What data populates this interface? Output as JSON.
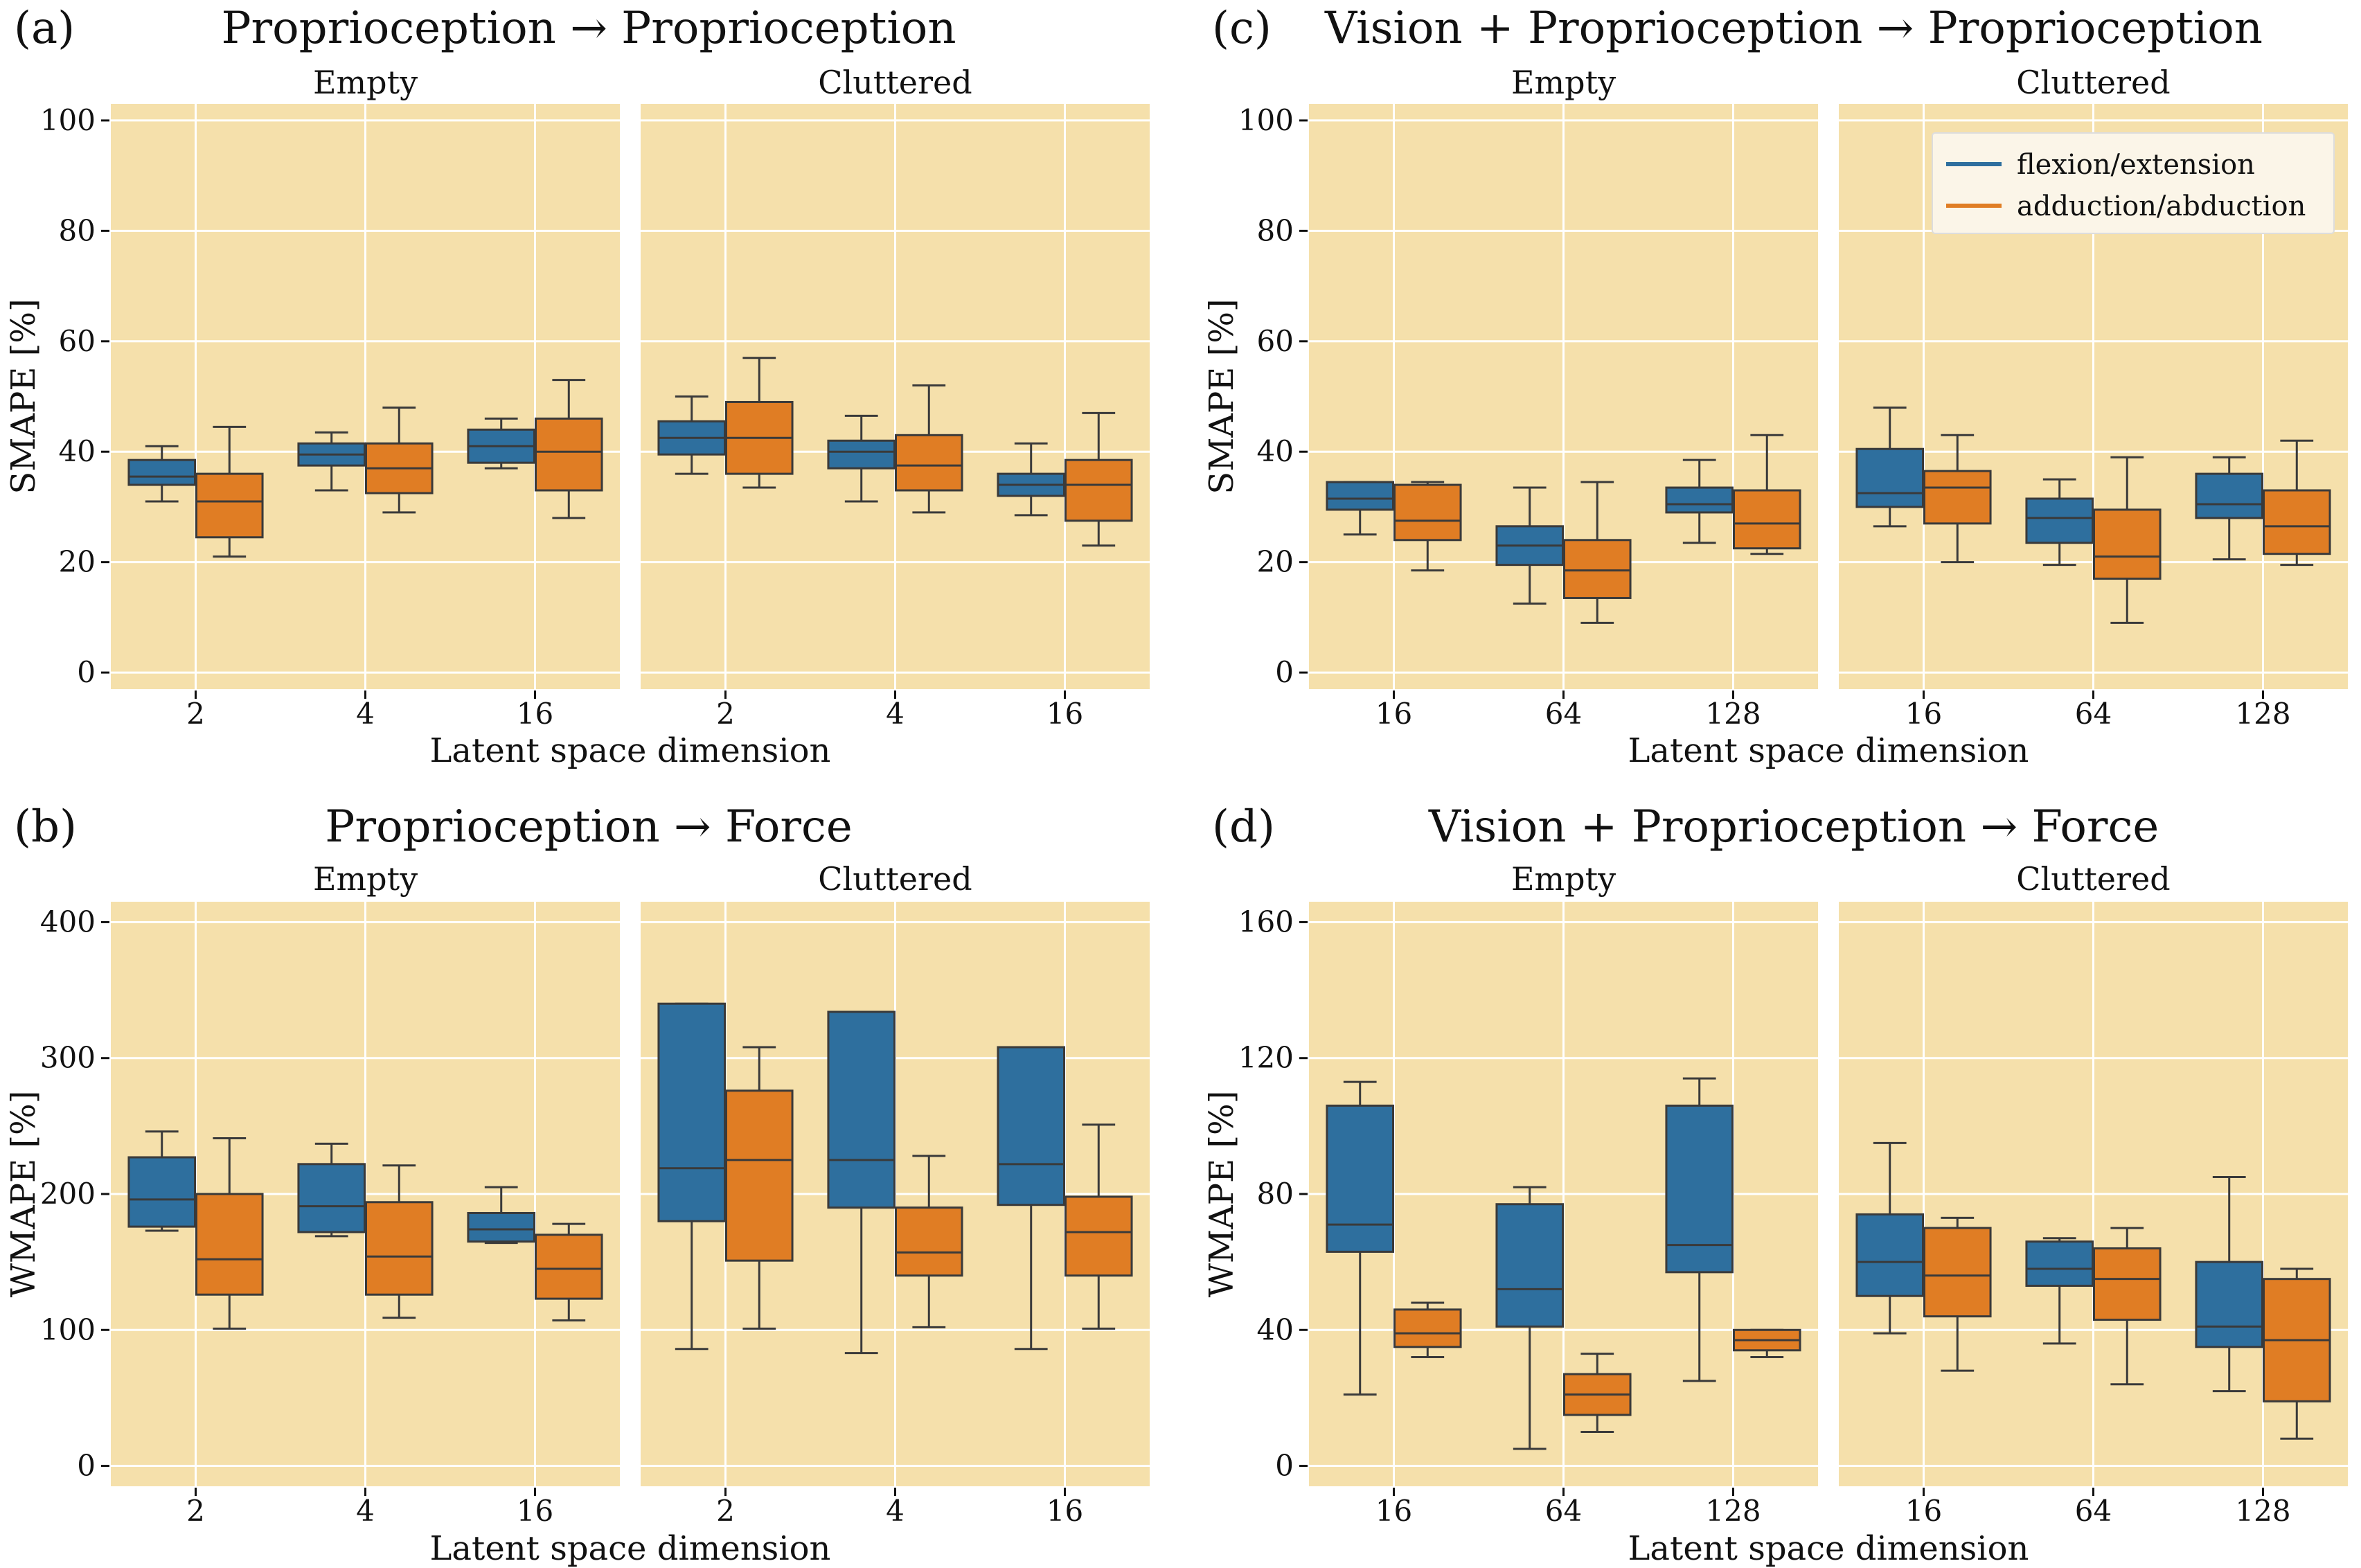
{
  "colors": {
    "panel_bg": "#f5e0ab",
    "grid": "#ffffff",
    "flexion": "#2e6f9e",
    "adduction": "#e07d24",
    "edge": "#3a3a3a"
  },
  "legend": {
    "flexion": "flexion/extension",
    "adduction": "adduction/abduction"
  },
  "chart_data": [
    {
      "id": "a",
      "type": "box",
      "label": "(a)",
      "title": "Proprioception → Proprioception",
      "ylabel": "SMAPE [%]",
      "xlabel": "Latent space dimension",
      "ylim": [
        -3,
        103
      ],
      "yticks": [
        "0",
        "20",
        "40",
        "60",
        "80",
        "100"
      ],
      "categories": [
        "2",
        "4",
        "16"
      ],
      "facets": [
        {
          "title": "Empty",
          "boxes": [
            [
              [
                31,
                34,
                35.5,
                38.5,
                41
              ],
              [
                21,
                24.5,
                31,
                36,
                44.5
              ]
            ],
            [
              [
                33,
                37.5,
                39.5,
                41.5,
                43.5
              ],
              [
                29,
                32.5,
                37,
                41.5,
                48
              ]
            ],
            [
              [
                37,
                38,
                41,
                44,
                46
              ],
              [
                28,
                33,
                40,
                46,
                53
              ]
            ]
          ]
        },
        {
          "title": "Cluttered",
          "boxes": [
            [
              [
                36,
                39.5,
                42.5,
                45.5,
                50
              ],
              [
                33.5,
                36,
                42.5,
                49,
                57
              ]
            ],
            [
              [
                31,
                37,
                40,
                42,
                46.5
              ],
              [
                29,
                33,
                37.5,
                43,
                52
              ]
            ],
            [
              [
                28.5,
                32,
                34,
                36,
                41.5
              ],
              [
                23,
                27.5,
                34,
                38.5,
                47
              ]
            ]
          ]
        }
      ]
    },
    {
      "id": "c",
      "type": "box",
      "label": "(c)",
      "title": "Vision + Proprioception → Proprioception",
      "ylabel": "SMAPE [%]",
      "xlabel": "Latent space dimension",
      "ylim": [
        -3,
        103
      ],
      "yticks": [
        "0",
        "20",
        "40",
        "60",
        "80",
        "100"
      ],
      "categories": [
        "16",
        "64",
        "128"
      ],
      "facets": [
        {
          "title": "Empty",
          "boxes": [
            [
              [
                25,
                29.5,
                31.5,
                34.5,
                34.5
              ],
              [
                18.5,
                24,
                27.5,
                34,
                34.5
              ]
            ],
            [
              [
                12.5,
                19.5,
                23,
                26.5,
                33.5
              ],
              [
                9,
                13.5,
                18.5,
                24,
                34.5
              ]
            ],
            [
              [
                23.5,
                29,
                30.5,
                33.5,
                38.5
              ],
              [
                21.5,
                22.5,
                27,
                33,
                43
              ]
            ]
          ]
        },
        {
          "title": "Cluttered",
          "boxes": [
            [
              [
                26.5,
                30,
                32.5,
                40.5,
                48
              ],
              [
                20,
                27,
                33.5,
                36.5,
                43
              ]
            ],
            [
              [
                19.5,
                23.5,
                28,
                31.5,
                35
              ],
              [
                9,
                17,
                21,
                29.5,
                39
              ]
            ],
            [
              [
                20.5,
                28,
                30.5,
                36,
                39
              ],
              [
                19.5,
                21.5,
                26.5,
                33,
                42
              ]
            ]
          ]
        }
      ]
    },
    {
      "id": "b",
      "type": "box",
      "label": "(b)",
      "title": "Proprioception → Force",
      "ylabel": "WMAPE [%]",
      "xlabel": "Latent space dimension",
      "ylim": [
        -15,
        415
      ],
      "yticks": [
        "0",
        "100",
        "200",
        "300",
        "400"
      ],
      "categories": [
        "2",
        "4",
        "16"
      ],
      "facets": [
        {
          "title": "Empty",
          "boxes": [
            [
              [
                173,
                176,
                196,
                227,
                246
              ],
              [
                101,
                126,
                152,
                200,
                241
              ]
            ],
            [
              [
                169,
                172,
                191,
                222,
                237
              ],
              [
                109,
                126,
                154,
                194,
                221
              ]
            ],
            [
              [
                164,
                165,
                174,
                186,
                205
              ],
              [
                107,
                123,
                145,
                170,
                178
              ]
            ]
          ]
        },
        {
          "title": "Cluttered",
          "boxes": [
            [
              [
                86,
                180,
                219,
                340,
                340
              ],
              [
                101,
                151,
                225,
                276,
                308
              ]
            ],
            [
              [
                83,
                190,
                225,
                334,
                334
              ],
              [
                102,
                140,
                157,
                190,
                228
              ]
            ],
            [
              [
                86,
                192,
                222,
                308,
                308
              ],
              [
                101,
                140,
                172,
                198,
                251
              ]
            ]
          ]
        }
      ]
    },
    {
      "id": "d",
      "type": "box",
      "label": "(d)",
      "title": "Vision + Proprioception → Force",
      "ylabel": "WMAPE [%]",
      "xlabel": "Latent space dimension",
      "ylim": [
        -6,
        166
      ],
      "yticks": [
        "0",
        "40",
        "80",
        "120",
        "160"
      ],
      "categories": [
        "16",
        "64",
        "128"
      ],
      "facets": [
        {
          "title": "Empty",
          "boxes": [
            [
              [
                21,
                63,
                71,
                106,
                113
              ],
              [
                32,
                35,
                39,
                46,
                48
              ]
            ],
            [
              [
                5,
                41,
                52,
                77,
                82
              ],
              [
                10,
                15,
                21,
                27,
                33
              ]
            ],
            [
              [
                25,
                57,
                65,
                106,
                114
              ],
              [
                32,
                34,
                37,
                40,
                40
              ]
            ]
          ]
        },
        {
          "title": "Cluttered",
          "boxes": [
            [
              [
                39,
                50,
                60,
                74,
                95
              ],
              [
                28,
                44,
                56,
                70,
                73
              ]
            ],
            [
              [
                36,
                53,
                58,
                66,
                67
              ],
              [
                24,
                43,
                55,
                64,
                70
              ]
            ],
            [
              [
                22,
                35,
                41,
                60,
                85
              ],
              [
                8,
                19,
                37,
                55,
                58
              ]
            ]
          ]
        }
      ]
    }
  ]
}
